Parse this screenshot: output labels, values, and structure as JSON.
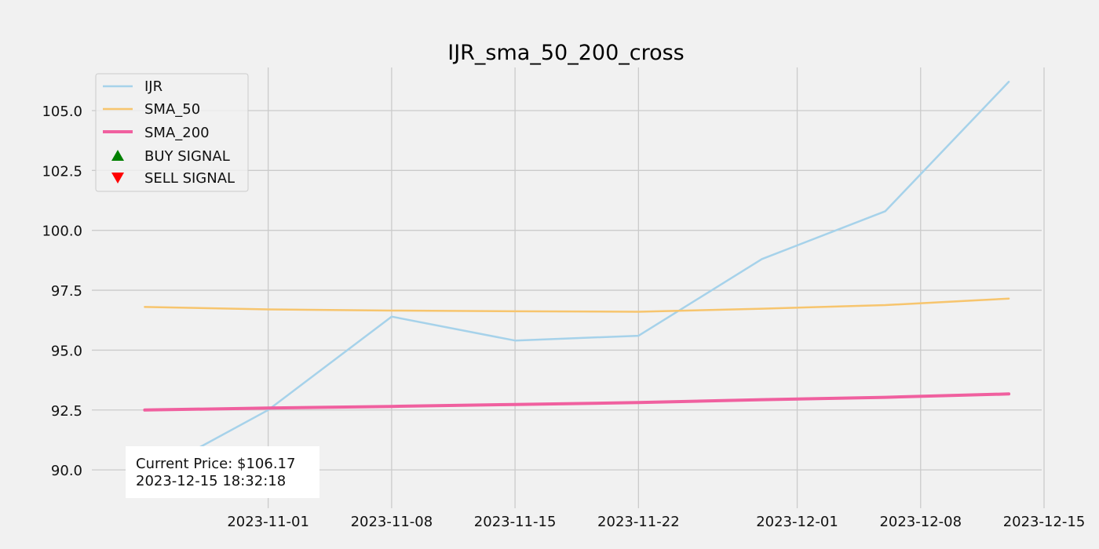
{
  "chart_data": {
    "type": "line",
    "title": "IJR_sma_50_200_cross",
    "xlabel": "",
    "ylabel": "",
    "x_ticks": [
      "2023-11-01",
      "2023-11-08",
      "2023-11-15",
      "2023-11-22",
      "2023-12-01",
      "2023-12-08",
      "2023-12-15"
    ],
    "y_ticks": [
      "90.0",
      "92.5",
      "95.0",
      "97.5",
      "100.0",
      "102.5",
      "105.0"
    ],
    "xlim": [
      "2023-10-22",
      "2023-12-15"
    ],
    "ylim": [
      88.4,
      106.8
    ],
    "grid": true,
    "legend_position": "top-left",
    "x": [
      "2023-10-25",
      "2023-11-01",
      "2023-11-08",
      "2023-11-15",
      "2023-11-22",
      "2023-11-29",
      "2023-12-06",
      "2023-12-13"
    ],
    "series": [
      {
        "name": "IJR",
        "color": "#a6d2ea",
        "width": 2.5,
        "values": [
          89.7,
          92.5,
          96.4,
          95.4,
          95.6,
          98.8,
          100.8,
          106.2
        ]
      },
      {
        "name": "SMA_50",
        "color": "#f7c56e",
        "width": 2.5,
        "values": [
          96.8,
          96.7,
          96.65,
          96.62,
          96.6,
          96.73,
          96.88,
          97.15
        ]
      },
      {
        "name": "SMA_200",
        "color": "#f0609f",
        "width": 4,
        "values": [
          92.5,
          92.58,
          92.65,
          92.73,
          92.81,
          92.93,
          93.03,
          93.17
        ]
      }
    ],
    "markers": [
      {
        "name": "BUY SIGNAL",
        "symbol": "triangle-up",
        "color": "#008000",
        "points": []
      },
      {
        "name": "SELL SIGNAL",
        "symbol": "triangle-down",
        "color": "#ff0000",
        "points": []
      }
    ],
    "annotation": {
      "line1": "Current Price: $106.17",
      "line2": "2023-12-15 18:32:18"
    }
  }
}
